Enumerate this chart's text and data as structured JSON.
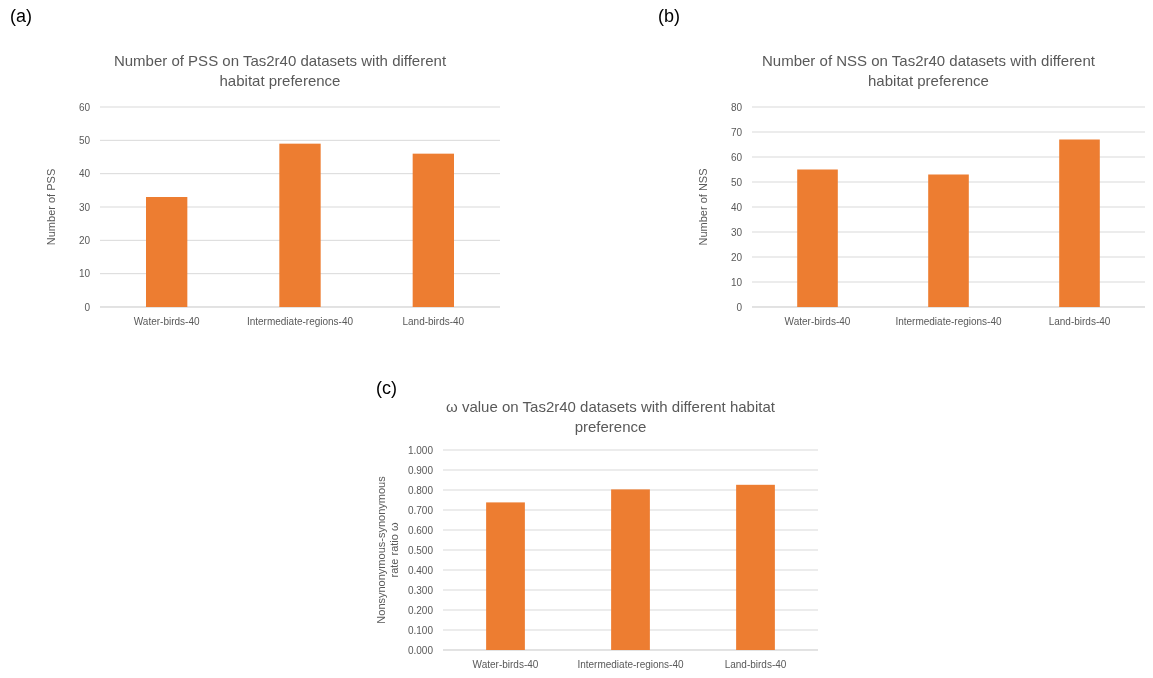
{
  "chart_data": [
    {
      "type": "bar",
      "title": "Number of PSS on Tas2r40 datasets with different habitat preference",
      "ylabel": "Number of PSS",
      "annotations": [
        "(a)"
      ],
      "categories": [
        "Water-birds-40",
        "Intermediate-regions-40",
        "Land-birds-40"
      ],
      "values": [
        33,
        49,
        46
      ],
      "color": "#ed7d31",
      "ylim": [
        0,
        60
      ],
      "yticks": [
        0,
        10,
        20,
        30,
        40,
        50,
        60
      ],
      "grid": "y"
    },
    {
      "type": "bar",
      "title": "Number of NSS on Tas2r40 datasets with different habitat preference",
      "ylabel": "Number of NSS",
      "annotations": [
        "(b)"
      ],
      "categories": [
        "Water-birds-40",
        "Intermediate-regions-40",
        "Land-birds-40"
      ],
      "values": [
        55,
        53,
        67
      ],
      "color": "#ed7d31",
      "ylim": [
        0,
        80
      ],
      "yticks": [
        0,
        10,
        20,
        30,
        40,
        50,
        60,
        70,
        80
      ],
      "grid": "y"
    },
    {
      "type": "bar",
      "title": "ω value on Tas2r40 datasets with different habitat preference",
      "ylabel": "Nonsynonymous-synonymous rate ratio ω",
      "annotations": [
        "(c)"
      ],
      "categories": [
        "Water-birds-40",
        "Intermediate-regions-40",
        "Land-birds-40"
      ],
      "values": [
        0.738,
        0.803,
        0.826
      ],
      "color": "#ed7d31",
      "ylim": [
        0,
        1
      ],
      "yticks": [
        {
          "value": 0,
          "label": "0.000"
        },
        {
          "value": 0.1,
          "label": "0.100"
        },
        {
          "value": 0.2,
          "label": "0.200"
        },
        {
          "value": 0.3,
          "label": "0.300"
        },
        {
          "value": 0.4,
          "label": "0.400"
        },
        {
          "value": 0.5,
          "label": "0.500"
        },
        {
          "value": 0.6,
          "label": "0.600"
        },
        {
          "value": 0.7,
          "label": "0.700"
        },
        {
          "value": 0.8,
          "label": "0.800"
        },
        {
          "value": 0.9,
          "label": "0.900"
        },
        {
          "value": 1,
          "label": "1.000"
        }
      ],
      "grid": "y"
    }
  ]
}
